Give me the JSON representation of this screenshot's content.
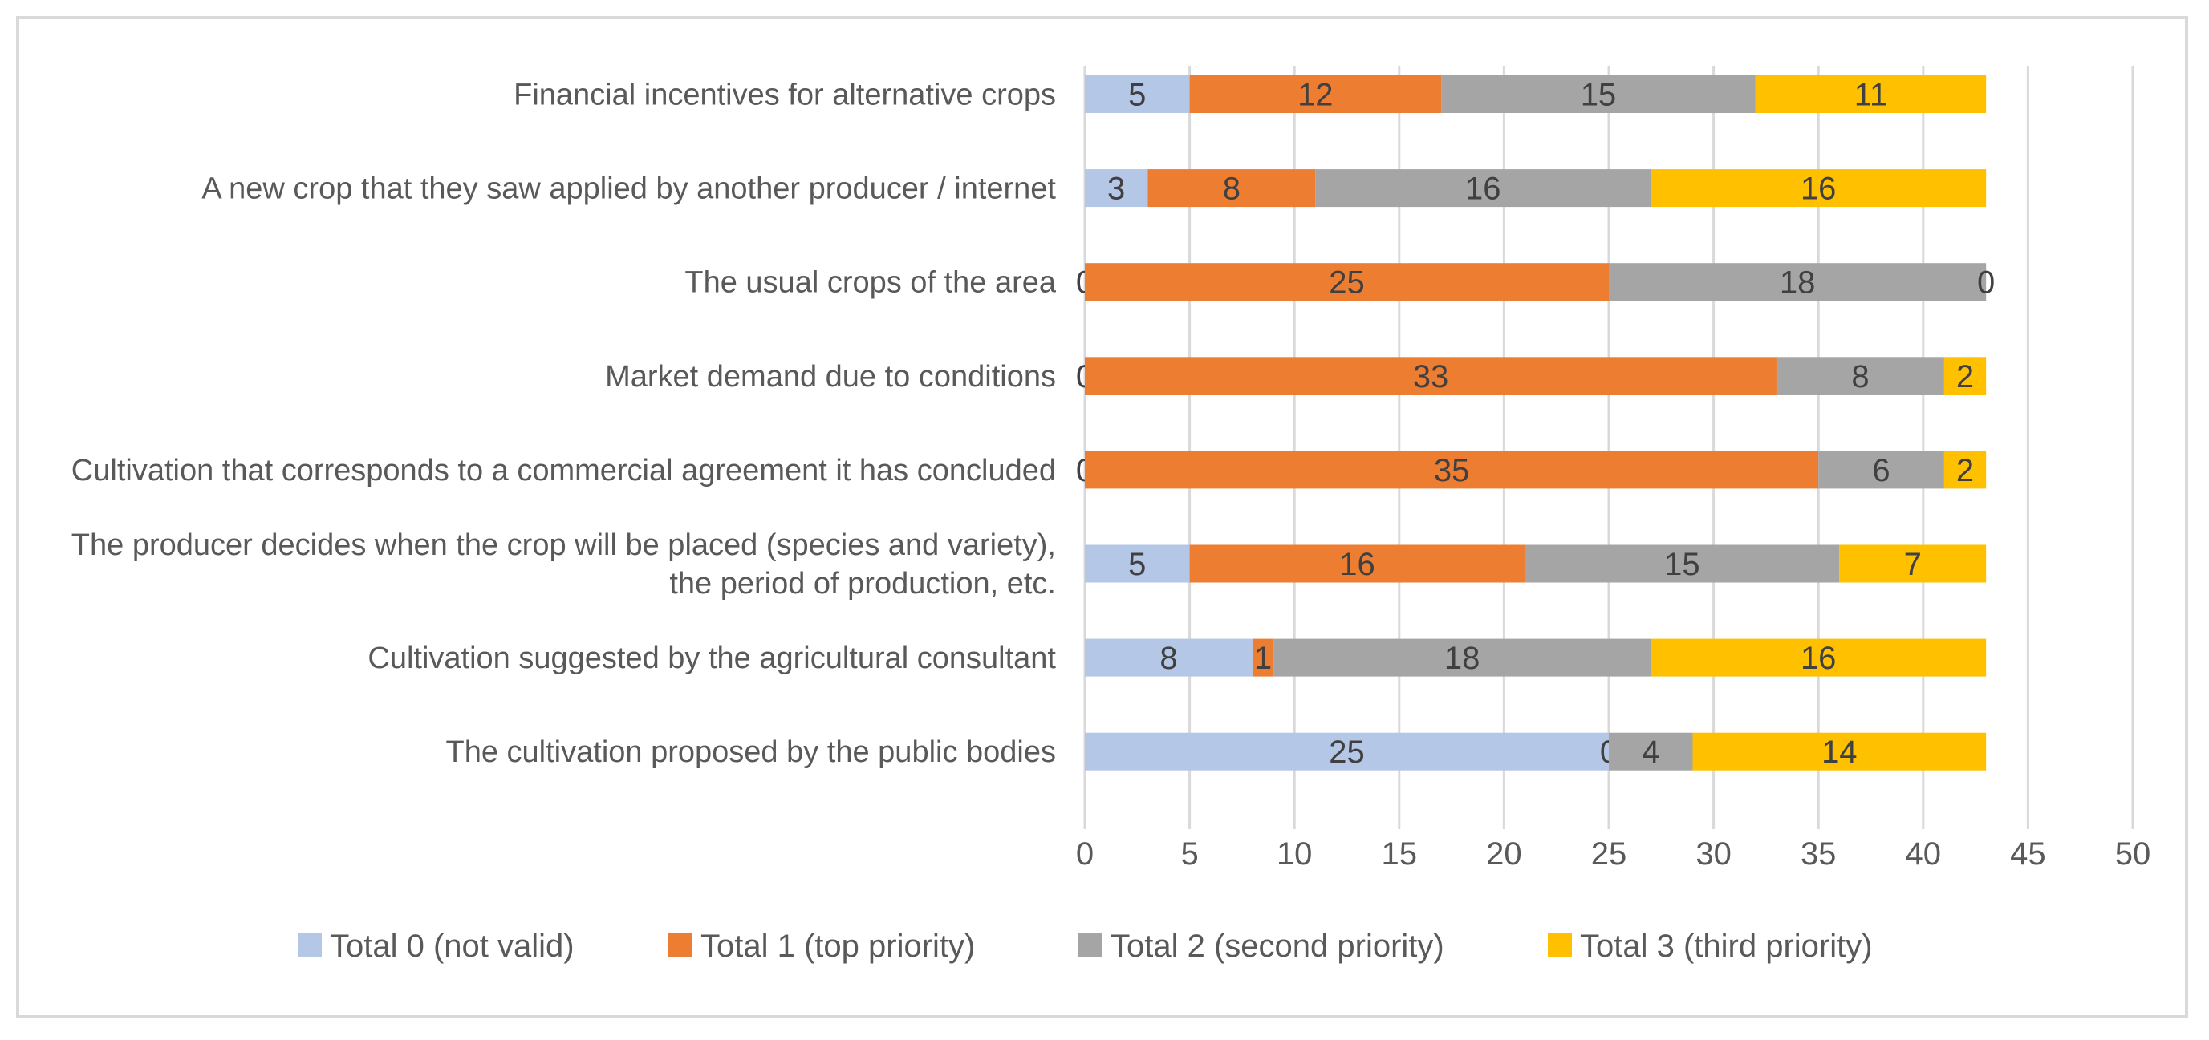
{
  "chart_data": {
    "type": "bar",
    "orientation": "horizontal",
    "stacked": true,
    "title": "",
    "xlabel": "",
    "ylabel": "",
    "xlim": [
      0,
      50
    ],
    "xticks": [
      0,
      5,
      10,
      15,
      20,
      25,
      30,
      35,
      40,
      45,
      50
    ],
    "grid": "vertical",
    "legend": "bottom",
    "categories": [
      [
        "Financial incentives for alternative crops"
      ],
      [
        "A new crop that they saw applied by another producer / internet"
      ],
      [
        "The usual crops of the area"
      ],
      [
        "Market demand due to conditions"
      ],
      [
        "Cultivation that corresponds to a commercial agreement it has concluded"
      ],
      [
        "The producer decides when the crop will be placed (species and variety),",
        "the period of production, etc."
      ],
      [
        "Cultivation suggested by the agricultural consultant"
      ],
      [
        "The cultivation proposed by the public bodies"
      ]
    ],
    "series": [
      {
        "name": "Total 0 (not valid)",
        "color": "#b4c7e7",
        "values": [
          5,
          3,
          0,
          0,
          0,
          5,
          8,
          25
        ]
      },
      {
        "name": "Total 1 (top priority)",
        "color": "#ed7d31",
        "values": [
          12,
          8,
          25,
          33,
          35,
          16,
          1,
          0
        ]
      },
      {
        "name": "Total 2 (second priority)",
        "color": "#a5a5a5",
        "values": [
          15,
          16,
          18,
          8,
          6,
          15,
          18,
          4
        ]
      },
      {
        "name": "Total 3 (third priority)",
        "color": "#ffc000",
        "values": [
          11,
          16,
          0,
          2,
          2,
          7,
          16,
          14
        ]
      }
    ]
  }
}
